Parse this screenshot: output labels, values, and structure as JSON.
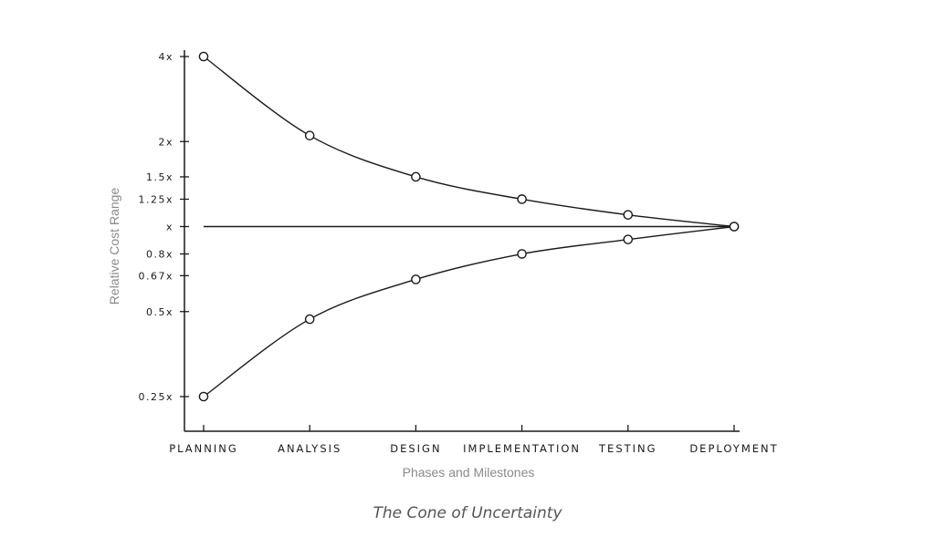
{
  "chart_data": {
    "type": "line",
    "title": "",
    "caption": "The Cone of Uncertainty",
    "xlabel": "Phases and Milestones",
    "ylabel": "Relative Cost  Range",
    "y_scale": "log",
    "categories": [
      "PLANNING",
      "ANALYSIS",
      "DESIGN",
      "IMPLEMENTATION",
      "TESTING",
      "DEPLOYMENT"
    ],
    "y_ticks": [
      {
        "value": 4,
        "label": "4x"
      },
      {
        "value": 2,
        "label": "2x"
      },
      {
        "value": 1.5,
        "label": "1.5x"
      },
      {
        "value": 1.25,
        "label": "1.25x"
      },
      {
        "value": 1,
        "label": "x"
      },
      {
        "value": 0.8,
        "label": "0.8x"
      },
      {
        "value": 0.67,
        "label": "0.67x"
      },
      {
        "value": 0.5,
        "label": "0.5x"
      },
      {
        "value": 0.25,
        "label": "0.25x"
      }
    ],
    "series": [
      {
        "values": [
          4,
          2.1,
          1.5,
          1.25,
          1.1,
          1
        ]
      },
      {
        "values": [
          1,
          1,
          1,
          1,
          1,
          1
        ]
      },
      {
        "values": [
          0.25,
          0.47,
          0.65,
          0.8,
          0.9,
          1
        ]
      }
    ],
    "grid": false,
    "colors": {
      "line": "#1a1a1a",
      "marker_fill": "#ffffff",
      "axis_title": "#8a8a8a",
      "caption": "#555555"
    }
  }
}
